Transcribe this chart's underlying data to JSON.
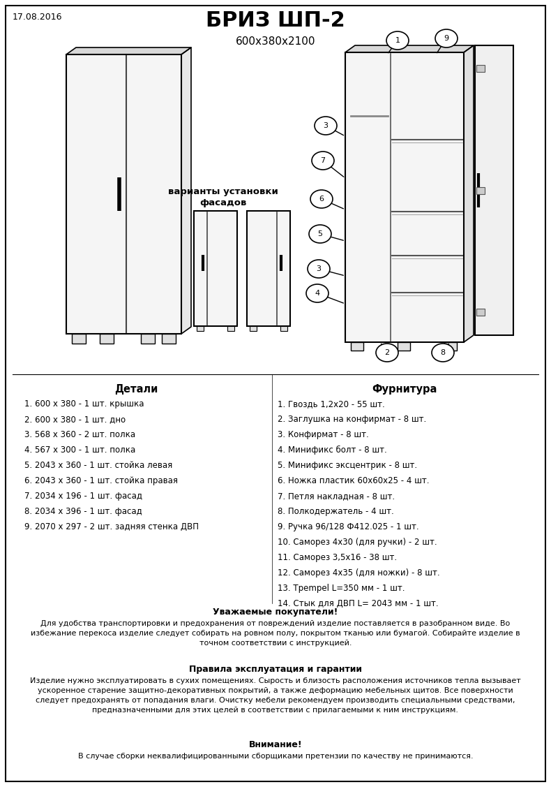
{
  "title": "БРИЗ ШП-2",
  "subtitle": "600x380x2100",
  "date": "17.08.2016",
  "bg_color": "#ffffff",
  "details_header": "Детали",
  "hardware_header": "Фурнитура",
  "details": [
    "1. 600 х 380 - 1 шт. крышка",
    "2. 600 х 380 - 1 шт. дно",
    "3. 568 х 360 - 2 шт. полка",
    "4. 567 х 300 - 1 шт. полка",
    "5. 2043 х 360 - 1 шт. стойка левая",
    "6. 2043 х 360 - 1 шт. стойка правая",
    "7. 2034 х 196 - 1 шт. фасад",
    "8. 2034 х 396 - 1 шт. фасад",
    "9. 2070 х 297 - 2 шт. задняя стенка ДВП"
  ],
  "hardware": [
    "1. Гвоздь 1,2х20 - 55 шт.",
    "2. Заглушка на конфирмат - 8 шт.",
    "3. Конфирмат - 8 шт.",
    "4. Минификс болт - 8 шт.",
    "5. Минификс эксцентрик - 8 шт.",
    "6. Ножка пластик 60х60х25 - 4 шт.",
    "7. Петля накладная - 8 шт.",
    "8. Полкодержатель - 4 шт.",
    "9. Ручка 96/128 Ф412.025 - 1 шт.",
    "10. Саморез 4х30 (для ручки) - 2 шт.",
    "11. Саморез 3,5х16 - 38 шт.",
    "12. Саморез 4х35 (для ножки) - 8 шт.",
    "13. Трempel L=350 мм - 1 шт.",
    "14. Стык для ДВП L= 2043 мм - 1 шт."
  ],
  "variants_label": "варианты установки\nфасадов",
  "footer_bold1": "Уважаемые покупатели!",
  "footer_text1": "Для удобства транспортировки и предохранения от повреждений изделие поставляется в разобранном виде. Во\nизбежание перекоса изделие следует собирать на ровном полу, покрытом тканью или бумагой. Собирайте изделие в\nточном соответствии с инструкцией.",
  "footer_bold2": "Правила эксплуатация и гарантии",
  "footer_text2": "Изделие нужно эксплуатировать в сухих помещениях. Сырость и близость расположения источников тепла вызывает\nускоренное старение защитно-декоративных покрытий, а также деформацию мебельных щитов. Все поверхности\nследует предохранять от попадания влаги. Очистку мебели рекомендуем производить специальными средствами,\nпредназначенными для этих целей в соответствии с прилагаемыми к ним инструкциям.",
  "footer_bold3": "Внимание!",
  "footer_text3": "В случае сборки неквалифицированными сборщиками претензии по качеству не принимаются."
}
